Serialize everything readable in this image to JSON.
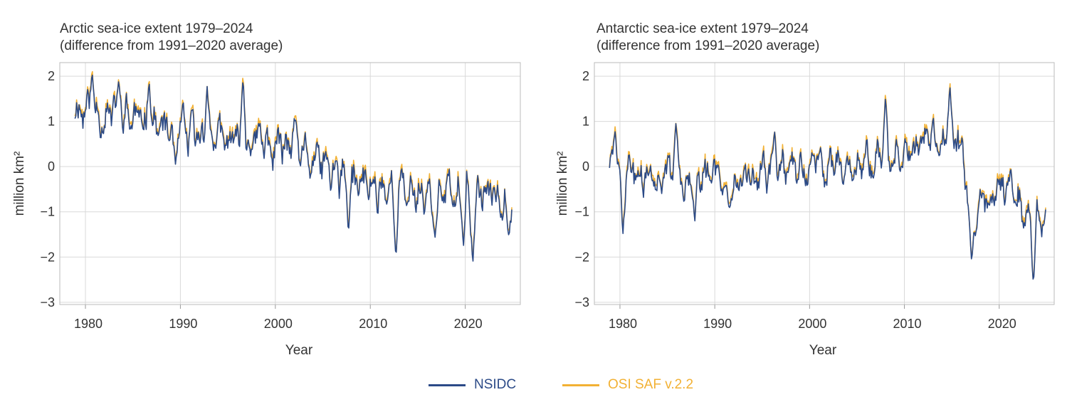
{
  "legend": {
    "nsidc": "NSIDC",
    "osisaf": "OSI SAF v.2.2"
  },
  "colors": {
    "nsidc": "#2b4a87",
    "osisaf": "#f2b134",
    "grid": "#d9d9d9"
  },
  "chart_data": [
    {
      "type": "line",
      "title_line1": "Arctic sea-ice extent 1979–2024",
      "title_line2": "(difference from 1991–2020 average)",
      "xlabel": "Year",
      "ylabel": "million km²",
      "xlim": [
        1977.3,
        2025.8
      ],
      "ylim": [
        -3.05,
        2.3
      ],
      "xticks": [
        1980,
        1990,
        2000,
        2010,
        2020
      ],
      "yticks": [
        2,
        1,
        0,
        -1,
        -2,
        -3
      ],
      "ytick_labels": [
        "2",
        "1",
        "0",
        "−1",
        "−2",
        "−3"
      ],
      "grid": true,
      "trend": [
        [
          1979,
          1.3
        ],
        [
          1985,
          1.05
        ],
        [
          1990,
          0.7
        ],
        [
          1995,
          0.55
        ],
        [
          2000,
          0.5
        ],
        [
          2005,
          0.0
        ],
        [
          2008,
          -0.35
        ],
        [
          2012,
          -0.45
        ],
        [
          2016,
          -0.6
        ],
        [
          2020,
          -0.65
        ],
        [
          2024.9,
          -0.6
        ]
      ],
      "extremes": [
        [
          1980.7,
          2.1
        ],
        [
          1983.5,
          1.9
        ],
        [
          1986.7,
          1.95
        ],
        [
          1989.5,
          0.0
        ],
        [
          1992.8,
          1.85
        ],
        [
          1996.6,
          2.0
        ],
        [
          2002,
          1.1
        ],
        [
          2007.7,
          -1.45
        ],
        [
          2012.7,
          -2.0
        ],
        [
          2016.8,
          -1.6
        ],
        [
          2019.8,
          -1.8
        ],
        [
          2020.8,
          -2.15
        ],
        [
          2024.6,
          -1.55
        ]
      ],
      "noise": 0.28,
      "end": [
        2024.9,
        -0.95
      ],
      "seed": 11,
      "series": [
        {
          "name": "NSIDC"
        },
        {
          "name": "OSI SAF v.2.2"
        }
      ]
    },
    {
      "type": "line",
      "title_line1": "Antarctic sea-ice extent 1979–2024",
      "title_line2": "(difference from 1991–2020 average)",
      "xlabel": "Year",
      "ylabel": "million km²",
      "xlim": [
        1977.3,
        2025.8
      ],
      "ylim": [
        -3.05,
        2.3
      ],
      "xticks": [
        1980,
        1990,
        2000,
        2010,
        2020
      ],
      "yticks": [
        2,
        1,
        0,
        -1,
        -2,
        -3
      ],
      "ytick_labels": [
        "2",
        "1",
        "0",
        "−1",
        "−2",
        "−3"
      ],
      "grid": true,
      "trend": [
        [
          1979,
          0.0
        ],
        [
          1983,
          -0.25
        ],
        [
          1988,
          -0.25
        ],
        [
          1993,
          -0.35
        ],
        [
          1998,
          -0.05
        ],
        [
          2003,
          0.0
        ],
        [
          2007,
          0.1
        ],
        [
          2010,
          0.35
        ],
        [
          2014,
          0.6
        ],
        [
          2015.6,
          0.8
        ],
        [
          2016.5,
          -0.3
        ],
        [
          2017.2,
          -1.1
        ],
        [
          2019,
          -0.6
        ],
        [
          2021.5,
          -0.15
        ],
        [
          2022.5,
          -1.0
        ],
        [
          2024.9,
          -1.3
        ]
      ],
      "extremes": [
        [
          1979.5,
          0.8
        ],
        [
          1980.3,
          -1.55
        ],
        [
          1985.9,
          0.95
        ],
        [
          1987.9,
          -1.2
        ],
        [
          1996.3,
          0.8
        ],
        [
          2008,
          1.55
        ],
        [
          2014.8,
          1.8
        ],
        [
          2017.1,
          -2.15
        ],
        [
          2023.6,
          -2.6
        ],
        [
          2024.9,
          -0.95
        ]
      ],
      "noise": 0.25,
      "end": [
        2024.9,
        -0.95
      ],
      "seed": 29,
      "series": [
        {
          "name": "NSIDC"
        },
        {
          "name": "OSI SAF v.2.2"
        }
      ]
    }
  ]
}
